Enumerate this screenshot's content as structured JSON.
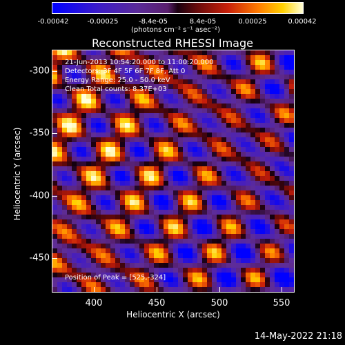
{
  "colorbar": {
    "tick_labels": [
      "-0.00042",
      "-0.00025",
      "-8.4e-05",
      "8.4e-05",
      "0.00025",
      "0.00042"
    ],
    "units": "(photons cm⁻² s⁻¹ asec⁻²)"
  },
  "title": "Reconstructed RHESSI Image",
  "info": {
    "time_range": "21-Jun-2013 10:54:20.000 to 11:00:20.000",
    "detectors": "Detectors: 3F 4F 5F 6F 7F 8F, Att 0",
    "energy_range": "Energy Range: 25.0 - 50.0 keV",
    "clean": "Clean    Total counts: 8.37E+03",
    "peak": "Position of Peak = [525,-324]"
  },
  "axes": {
    "xlabel": "Heliocentric X (arcsec)",
    "ylabel": "Heliocentric Y (arcsec)",
    "x_ticks": [
      "400",
      "450",
      "500",
      "550"
    ],
    "y_ticks": [
      "-300",
      "-350",
      "-400",
      "-450"
    ]
  },
  "timestamp": "14-May-2022 21:18"
}
